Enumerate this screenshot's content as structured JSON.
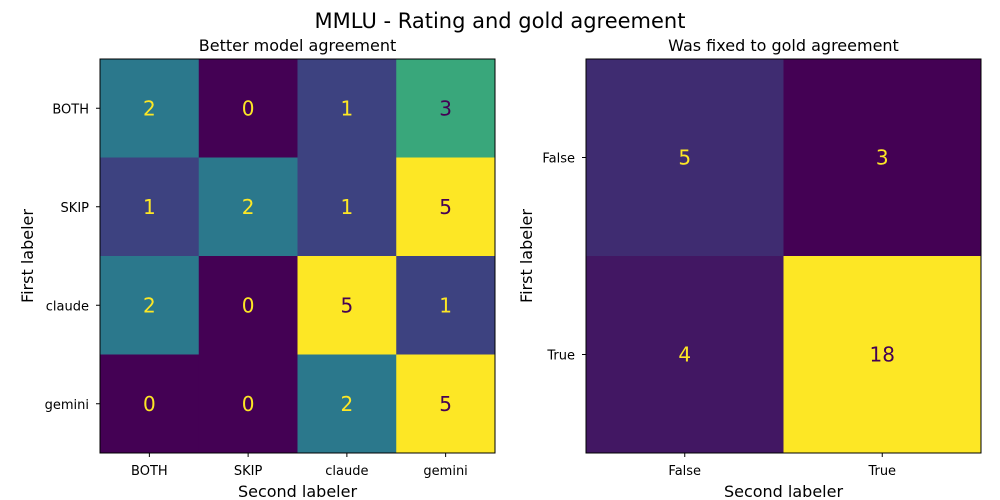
{
  "figure": {
    "title": "MMLU - Rating and gold agreement"
  },
  "colors": {
    "viridis": [
      "#440154",
      "#3b528b",
      "#21918c",
      "#5ec962",
      "#fde725"
    ],
    "text_dark": "#440154",
    "text_light": "#fde725"
  },
  "chart_data": [
    {
      "type": "heatmap",
      "title": "Better model agreement",
      "xlabel": "Second labeler",
      "ylabel": "First labeler",
      "x_categories": [
        "BOTH",
        "SKIP",
        "claude",
        "gemini"
      ],
      "y_categories": [
        "BOTH",
        "SKIP",
        "claude",
        "gemini"
      ],
      "values": [
        [
          2,
          0,
          1,
          3
        ],
        [
          1,
          2,
          1,
          5
        ],
        [
          2,
          0,
          5,
          1
        ],
        [
          0,
          0,
          2,
          5
        ]
      ],
      "color_range": [
        0,
        5
      ],
      "colormap": "viridis",
      "grid": false
    },
    {
      "type": "heatmap",
      "title": "Was fixed to gold agreement",
      "xlabel": "Second labeler",
      "ylabel": "First labeler",
      "x_categories": [
        "False",
        "True"
      ],
      "y_categories": [
        "False",
        "True"
      ],
      "values": [
        [
          5,
          3
        ],
        [
          4,
          18
        ]
      ],
      "color_range": [
        3,
        18
      ],
      "colormap": "viridis",
      "grid": false
    }
  ]
}
